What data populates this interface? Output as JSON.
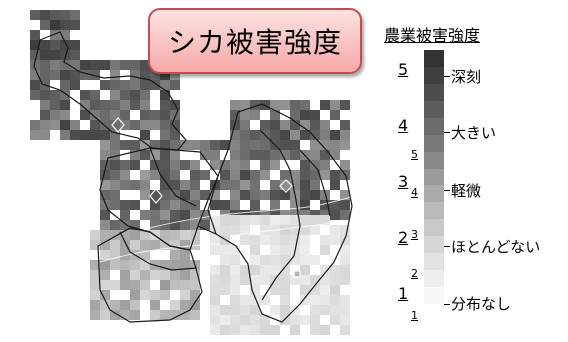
{
  "title": "シカ被害強度",
  "legend": {
    "title": "農業被害強度",
    "categories": [
      {
        "label": "深刻",
        "color": "#4a4a4a"
      },
      {
        "label": "大きい",
        "color": "#707070"
      },
      {
        "label": "軽微",
        "color": "#959595"
      },
      {
        "label": "ほとんどない",
        "color": "#c2c2c2"
      },
      {
        "label": "分布なし",
        "color": "#f2f2f2"
      }
    ],
    "major_levels": [
      "5",
      "4",
      "3",
      "2",
      "1"
    ],
    "minor_levels": [
      "5",
      "4",
      "3",
      "2",
      "1"
    ],
    "bar_colors": [
      "#333333",
      "#404040",
      "#4d4d4d",
      "#5c5c5c",
      "#6b6b6b",
      "#7a7a7a",
      "#8a8a8a",
      "#9a9a9a",
      "#aaaaaa",
      "#b9b9b9",
      "#c8c8c8",
      "#d6d6d6",
      "#e2e2e2",
      "#eeeeee",
      "#f7f7f7"
    ]
  }
}
